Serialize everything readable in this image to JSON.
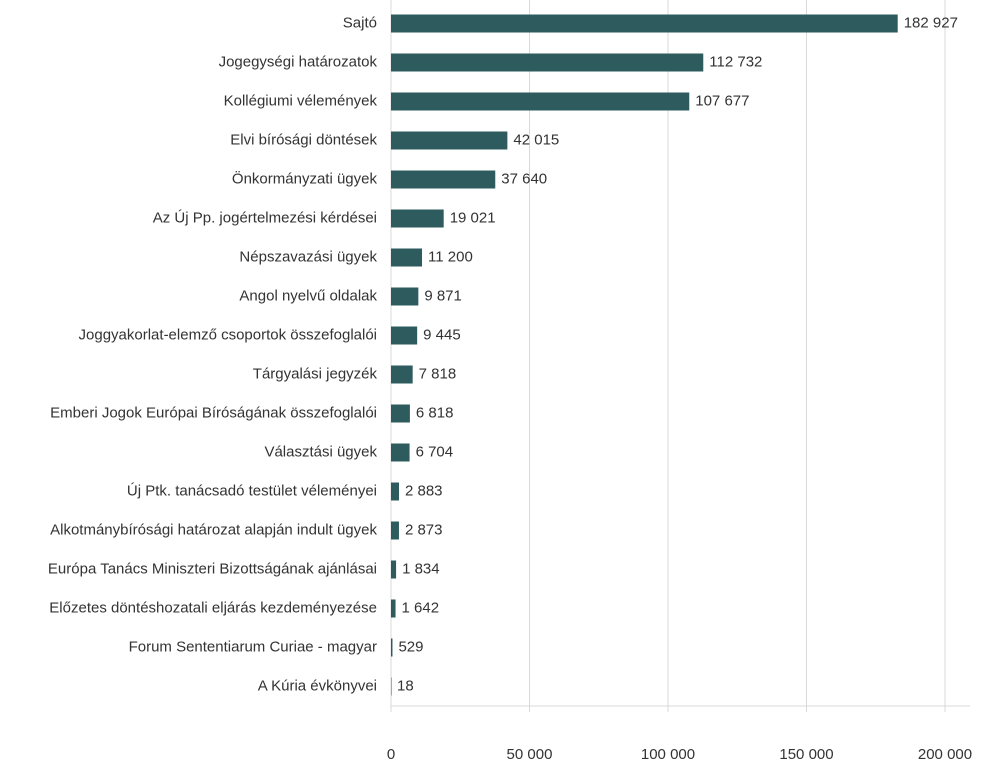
{
  "chart_data": {
    "type": "bar",
    "orientation": "horizontal",
    "color": "#2e5b5e",
    "grid": true,
    "categories": [
      "Sajtó",
      "Jogegységi határozatok",
      "Kollégiumi vélemények",
      "Elvi bírósági döntések",
      "Önkormányzati ügyek",
      "Az Új Pp. jogértelmezési kérdései",
      "Népszavazási ügyek",
      "Angol nyelvű oldalak",
      "Joggyakorlat-elemző csoportok összefoglalói",
      "Tárgyalási jegyzék",
      "Emberi Jogok Európai Bíróságának összefoglalói",
      "Választási ügyek",
      "Új Ptk. tanácsadó testület véleményei",
      "Alkotmánybírósági határozat alapján indult ügyek",
      "Európa Tanács Miniszteri Bizottságának ajánlásai",
      "Előzetes döntéshozatali eljárás kezdeményezése",
      "Forum Sententiarum Curiae - magyar",
      "A Kúria évkönyvei"
    ],
    "values": [
      182927,
      112732,
      107677,
      42015,
      37640,
      19021,
      11200,
      9871,
      9445,
      7818,
      6818,
      6704,
      2883,
      2873,
      1834,
      1642,
      529,
      18
    ],
    "value_labels": [
      "182 927",
      "112 732",
      "107 677",
      "42 015",
      "37 640",
      "19 021",
      "11 200",
      "9 871",
      "9 445",
      "7 818",
      "6 818",
      "6 704",
      "2 883",
      "2 873",
      "1 834",
      "1 642",
      "529",
      "18"
    ],
    "xlim": [
      0,
      200000
    ],
    "xticks": [
      0,
      {
        "value": 50000,
        "label": "50 000"
      },
      {
        "value": 100000,
        "label": "100 000"
      },
      {
        "value": 150000,
        "label": "150 000"
      },
      {
        "value": 200000,
        "label": "200 000"
      }
    ]
  }
}
